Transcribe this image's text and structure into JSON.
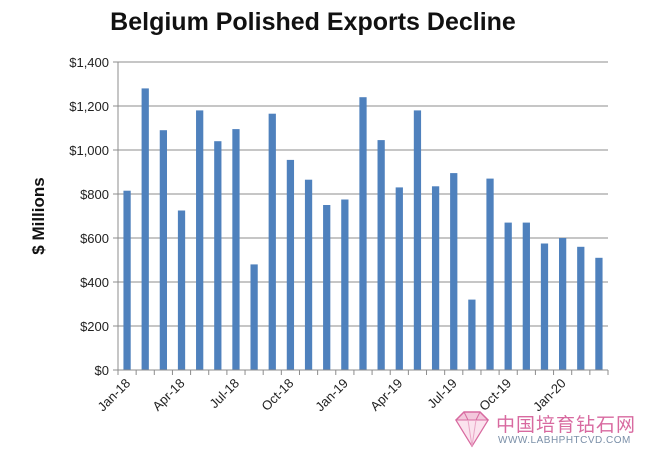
{
  "chart_data": {
    "type": "bar",
    "title": "Belgium Polished Exports Decline",
    "ylabel": "$ Millions",
    "xlabel": "",
    "ylim": [
      0,
      1400
    ],
    "y_ticks": [
      "$0",
      "$200",
      "$400",
      "$600",
      "$800",
      "$1,000",
      "$1,200",
      "$1,400"
    ],
    "x_tick_labels": [
      "Jan-18",
      "Apr-18",
      "Jul-18",
      "Oct-18",
      "Jan-19",
      "Apr-19",
      "Jul-19",
      "Oct-19",
      "Jan-20"
    ],
    "categories": [
      "Jan-18",
      "Feb-18",
      "Mar-18",
      "Apr-18",
      "May-18",
      "Jun-18",
      "Jul-18",
      "Aug-18",
      "Sep-18",
      "Oct-18",
      "Nov-18",
      "Dec-18",
      "Jan-19",
      "Feb-19",
      "Mar-19",
      "Apr-19",
      "May-19",
      "Jun-19",
      "Jul-19",
      "Aug-19",
      "Sep-19",
      "Oct-19",
      "Nov-19",
      "Dec-19",
      "Jan-20",
      "Feb-20",
      "Mar-20"
    ],
    "values": [
      815,
      1280,
      1090,
      725,
      1180,
      1040,
      1095,
      480,
      1165,
      955,
      865,
      750,
      775,
      1240,
      1045,
      830,
      1180,
      835,
      895,
      320,
      870,
      670,
      670,
      575,
      600,
      560,
      510
    ],
    "bar_color": "#4f81bd",
    "grid": true,
    "legend": "none"
  },
  "watermark": {
    "chinese_text": "中国培育钻石网",
    "url_text": "WWW.LABHPHTCVD.COM"
  }
}
